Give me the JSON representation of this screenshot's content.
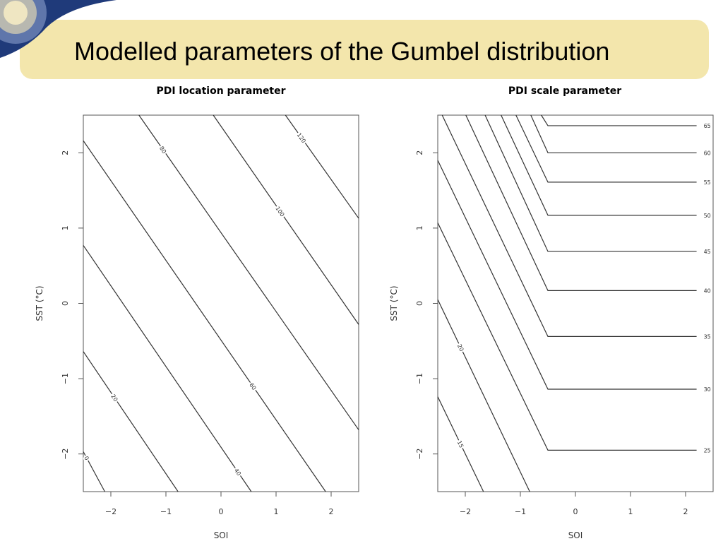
{
  "slide_title": "Modelled parameters of the Gumbel distribution",
  "chart_data": [
    {
      "type": "contour",
      "title": "PDI location parameter",
      "xlabel": "SOI",
      "ylabel": "SST (°C)",
      "color": "#333333",
      "xlim": [
        -2.5,
        2.5
      ],
      "ylim": [
        -2.5,
        2.5
      ],
      "xticks": [
        {
          "value": -2,
          "label": "−2"
        },
        {
          "value": -1,
          "label": "−1"
        },
        0,
        1,
        2
      ],
      "yticks": [
        {
          "value": -2,
          "label": "−2"
        },
        {
          "value": -1,
          "label": "−1"
        },
        0,
        1,
        2
      ],
      "series": [
        {
          "level": 0,
          "x": [
            -2.5,
            -2.11
          ],
          "y": [
            -1.97,
            -2.5
          ]
        },
        {
          "level": 20,
          "x": [
            -2.5,
            -0.78
          ],
          "y": [
            -0.64,
            -2.5
          ]
        },
        {
          "level": 40,
          "x": [
            -2.5,
            0.55
          ],
          "y": [
            0.77,
            -2.5
          ]
        },
        {
          "level": 60,
          "x": [
            -2.5,
            1.9
          ],
          "y": [
            2.16,
            -2.5
          ]
        },
        {
          "level": 80,
          "x": [
            -1.49,
            2.5
          ],
          "y": [
            2.5,
            -1.68
          ]
        },
        {
          "level": 100,
          "x": [
            -0.14,
            2.5
          ],
          "y": [
            2.5,
            -0.28
          ]
        },
        {
          "level": 120,
          "x": [
            1.17,
            2.5
          ],
          "y": [
            2.5,
            1.13
          ]
        }
      ]
    },
    {
      "type": "contour",
      "title": "PDI scale parameter",
      "xlabel": "SOI",
      "ylabel": "SST (°C)",
      "color": "#333333",
      "xlim": [
        -2.5,
        2.5
      ],
      "ylim": [
        -2.5,
        2.5
      ],
      "xticks": [
        {
          "value": -2,
          "label": "−2"
        },
        {
          "value": -1,
          "label": "−1"
        },
        0,
        1,
        2
      ],
      "yticks": [
        {
          "value": -2,
          "label": "−2"
        },
        {
          "value": -1,
          "label": "−1"
        },
        0,
        1,
        2
      ],
      "series": [
        {
          "level": 15,
          "x": [
            -2.5,
            -1.67
          ],
          "y": [
            -1.24,
            -2.5
          ]
        },
        {
          "level": 20,
          "x": [
            -2.5,
            -0.83
          ],
          "y": [
            0.05,
            -2.5
          ]
        },
        {
          "level": 25,
          "x": [
            -2.5,
            -0.5,
            2.2
          ],
          "y": [
            1.07,
            -1.95,
            -1.95
          ]
        },
        {
          "level": 30,
          "x": [
            -2.5,
            -0.5,
            2.2
          ],
          "y": [
            1.9,
            -1.14,
            -1.14
          ]
        },
        {
          "level": 35,
          "x": [
            -2.42,
            -0.5,
            2.2
          ],
          "y": [
            2.5,
            -0.44,
            -0.44
          ]
        },
        {
          "level": 40,
          "x": [
            -1.99,
            -0.5,
            2.2
          ],
          "y": [
            2.5,
            0.17,
            0.17
          ]
        },
        {
          "level": 45,
          "x": [
            -1.64,
            -0.5,
            2.2
          ],
          "y": [
            2.5,
            0.69,
            0.69
          ]
        },
        {
          "level": 50,
          "x": [
            -1.35,
            -0.5,
            2.2
          ],
          "y": [
            2.5,
            1.17,
            1.17
          ]
        },
        {
          "level": 55,
          "x": [
            -1.08,
            -0.5,
            2.2
          ],
          "y": [
            2.5,
            1.61,
            1.61
          ]
        },
        {
          "level": 60,
          "x": [
            -0.81,
            -0.5,
            2.2
          ],
          "y": [
            2.5,
            2.0,
            2.0
          ]
        },
        {
          "level": 65,
          "x": [
            -0.62,
            -0.5,
            2.2
          ],
          "y": [
            2.5,
            2.36,
            2.36
          ]
        }
      ]
    }
  ]
}
